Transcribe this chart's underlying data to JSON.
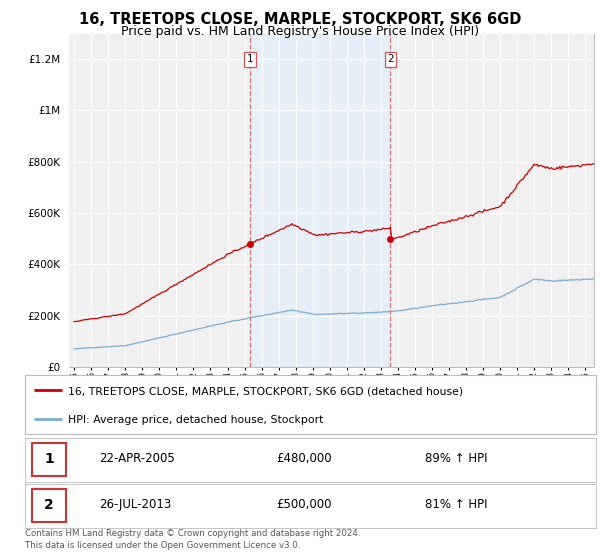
{
  "title": "16, TREETOPS CLOSE, MARPLE, STOCKPORT, SK6 6GD",
  "subtitle": "Price paid vs. HM Land Registry's House Price Index (HPI)",
  "title_fontsize": 10.5,
  "subtitle_fontsize": 9,
  "sale1_year": 2005.31,
  "sale1_price": 480000,
  "sale1_label": "1",
  "sale1_date": "22-APR-2005",
  "sale1_hpi": "89% ↑ HPI",
  "sale2_year": 2013.56,
  "sale2_price": 500000,
  "sale2_label": "2",
  "sale2_date": "26-JUL-2013",
  "sale2_hpi": "81% ↑ HPI",
  "red_color": "#cc0000",
  "blue_color": "#7aadd4",
  "shade_color": "#ddeeff",
  "dashed_color": "#cc6666",
  "legend_line1": "16, TREETOPS CLOSE, MARPLE, STOCKPORT, SK6 6GD (detached house)",
  "legend_line2": "HPI: Average price, detached house, Stockport",
  "footer1": "Contains HM Land Registry data © Crown copyright and database right 2024.",
  "footer2": "This data is licensed under the Open Government Licence v3.0.",
  "ylim_min": 0,
  "ylim_max": 1300000,
  "background_color": "#ffffff",
  "plot_bg_color": "#f0f0f0"
}
